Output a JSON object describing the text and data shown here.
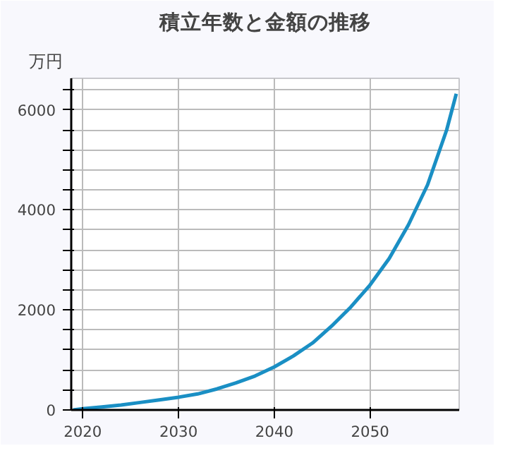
{
  "chart_data": {
    "type": "line",
    "title": "積立年数と金額の推移",
    "ylabel": "万円",
    "x": [
      2019,
      2020,
      2022,
      2024,
      2026,
      2028,
      2030,
      2032,
      2034,
      2036,
      2038,
      2040,
      2042,
      2044,
      2046,
      2048,
      2050,
      2052,
      2054,
      2056,
      2058,
      2059
    ],
    "series": [
      {
        "color": "#1a8fc4",
        "values": [
          0,
          25,
          60,
          100,
          150,
          200,
          255,
          320,
          420,
          540,
          680,
          860,
          1080,
          1340,
          1680,
          2060,
          2500,
          3030,
          3700,
          4500,
          5600,
          6320
        ]
      }
    ],
    "xlim": [
      2018.8,
      2059.3
    ],
    "xticks": [
      2020,
      2030,
      2040,
      2050
    ],
    "ylim": [
      0,
      6630
    ],
    "yticks": [
      0,
      {
        "value": 400,
        "label": null
      },
      {
        "value": 800,
        "label": null
      },
      {
        "value": 1200,
        "label": null
      },
      {
        "value": 1600,
        "label": null
      },
      2000,
      {
        "value": 2400,
        "label": null
      },
      {
        "value": 2800,
        "label": null
      },
      {
        "value": 3200,
        "label": null
      },
      {
        "value": 3600,
        "label": null
      },
      4000,
      {
        "value": 4400,
        "label": null
      },
      {
        "value": 4800,
        "label": null
      },
      {
        "value": 5200,
        "label": null
      },
      {
        "value": 5600,
        "label": null
      },
      6000,
      {
        "value": 6400,
        "label": null
      }
    ],
    "grid": true,
    "marker": "none",
    "line_style": "solid"
  }
}
